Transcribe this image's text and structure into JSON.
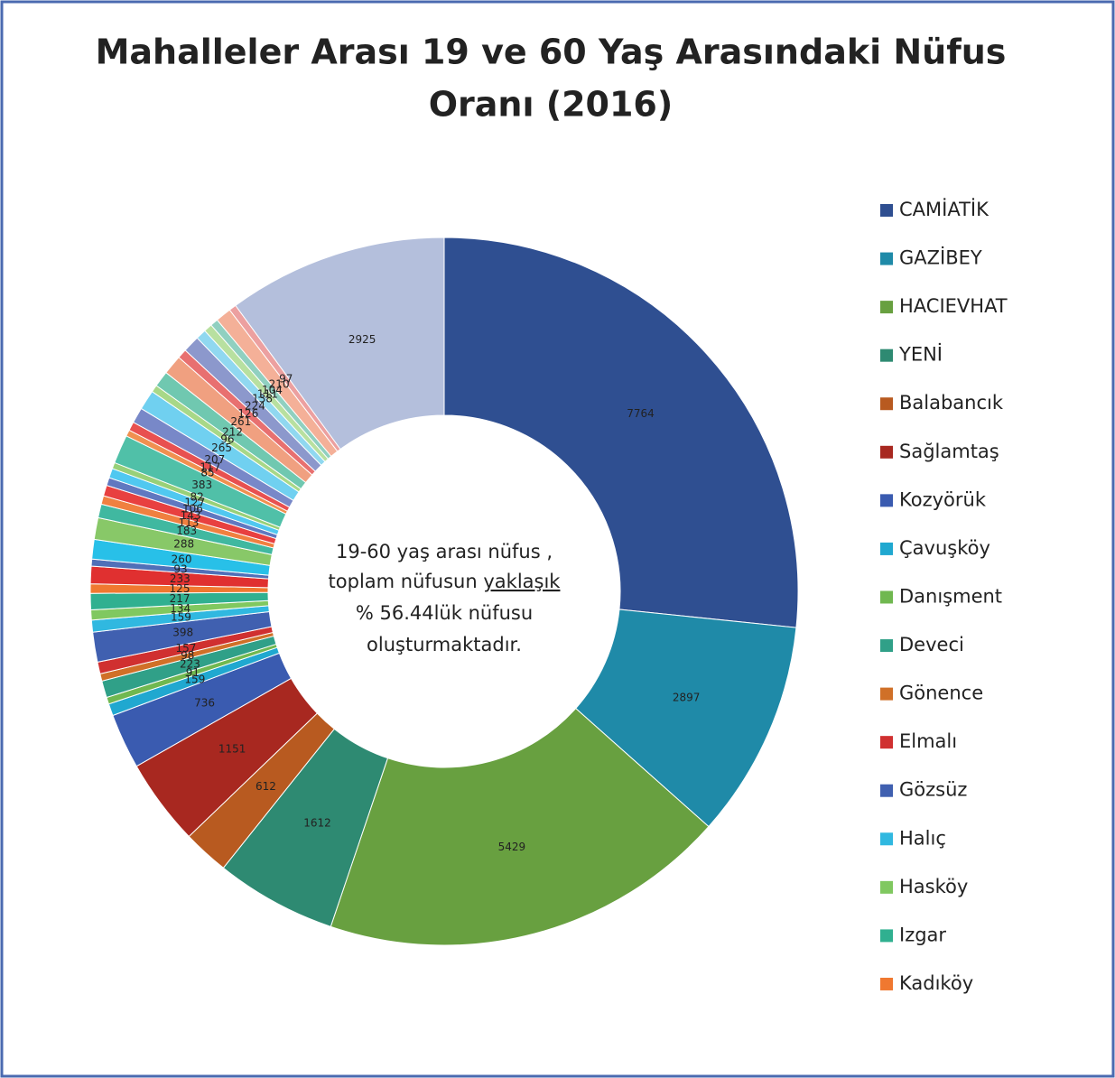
{
  "chart_data": {
    "type": "donut",
    "title": [
      "Mahalleler Arası 19 ve 60 Yaş Arasındaki Nüfus",
      "Oranı (2016)"
    ],
    "categories": [
      "CAMİATİK",
      "GAZİBEY",
      "HACIEVHAT",
      "YENİ",
      "Balabancık",
      "Sağlamtaş",
      "Kozyörük",
      "Çavuşköy",
      "Danışment",
      "Deveci",
      "Gönence",
      "Elmalı",
      "Gözsüz",
      "Halıç",
      "Hasköy",
      "Izgar",
      "Kadıköy",
      null,
      null,
      null,
      null,
      null,
      null,
      null,
      null,
      null,
      null,
      null,
      null,
      null,
      null,
      null,
      null,
      null,
      null,
      null,
      null,
      null,
      null,
      null,
      null,
      null,
      null
    ],
    "values": [
      7764,
      2897,
      5429,
      1612,
      612,
      1151,
      736,
      159,
      91,
      223,
      98,
      157,
      398,
      159,
      134,
      217,
      125,
      233,
      93,
      260,
      288,
      183,
      113,
      143,
      106,
      127,
      82,
      383,
      85,
      117,
      207,
      265,
      96,
      212,
      261,
      126,
      224,
      138,
      111,
      104,
      210,
      97,
      2925
    ],
    "colors": [
      "#2f4f91",
      "#1f8aa8",
      "#68a040",
      "#2e8a72",
      "#b85a20",
      "#a82820",
      "#3a5bb0",
      "#20a8d0",
      "#70b850",
      "#30a088",
      "#d07028",
      "#d03030",
      "#4060b0",
      "#30b8e0",
      "#80c860",
      "#30b090",
      "#f07830",
      "#e03030",
      "#5070b8",
      "#28c0e8",
      "#88c868",
      "#40b8a0",
      "#f08040",
      "#e84040",
      "#6078c0",
      "#50c8f0",
      "#98d078",
      "#50c0a8",
      "#f09050",
      "#e85050",
      "#7888c8",
      "#70d0f0",
      "#a8d888",
      "#70c8b0",
      "#f0a080",
      "#e87070",
      "#8c98cc",
      "#90d8f0",
      "#b8e0a0",
      "#90d0c0",
      "#f4b098",
      "#eca0a0",
      "#b4bfdc"
    ],
    "annotation": [
      "19-60 yaş arası nüfus ,",
      "toplam nüfusun",
      "yaklaşık",
      "% 56.44lük nüfusu",
      "oluşturmaktadır."
    ],
    "legend": "right"
  }
}
